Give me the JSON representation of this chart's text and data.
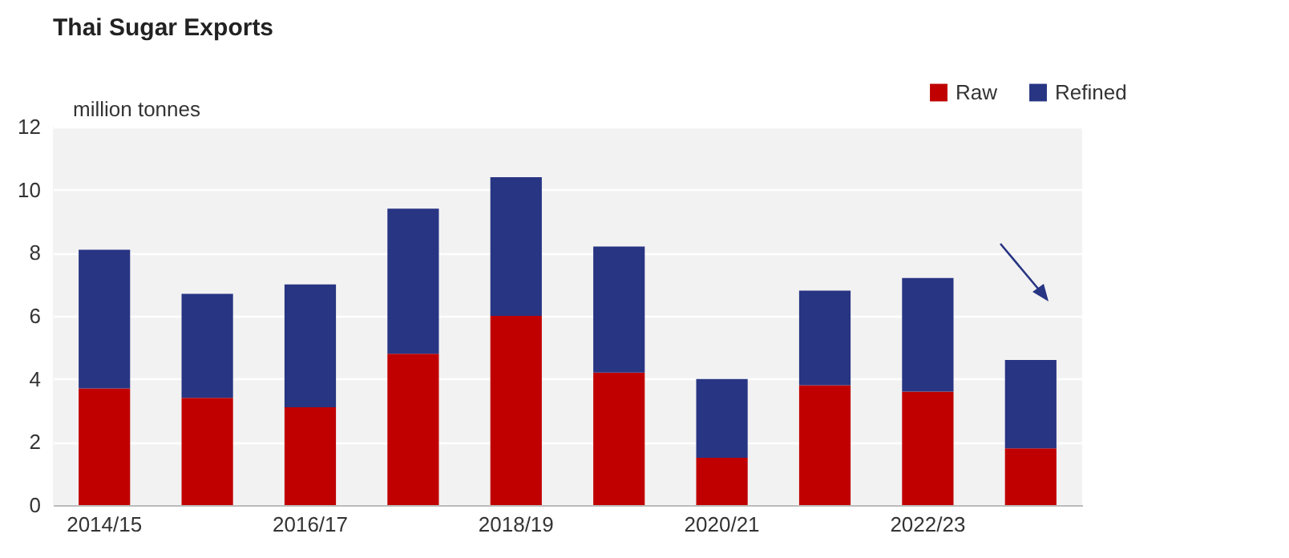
{
  "chart_data": {
    "type": "bar",
    "title": "Thai Sugar Exports",
    "ylabel": "million tonnes",
    "categories": [
      "2014/15",
      null,
      "2016/17",
      null,
      "2018/19",
      null,
      "2020/21",
      null,
      "2022/23",
      null
    ],
    "series": [
      {
        "name": "Raw",
        "color": "#c00000",
        "values": [
          3.7,
          3.4,
          3.1,
          4.8,
          6.0,
          4.2,
          1.5,
          3.8,
          3.6,
          1.8
        ]
      },
      {
        "name": "Refined",
        "color": "#283583",
        "values": [
          4.4,
          3.3,
          3.9,
          4.6,
          4.4,
          4.0,
          2.5,
          3.0,
          3.6,
          2.8
        ]
      }
    ],
    "stacked": true,
    "ylim": [
      0,
      12
    ],
    "yticks": [
      0,
      2,
      4,
      6,
      8,
      10,
      12
    ],
    "grid": "y",
    "legend": "top right"
  }
}
